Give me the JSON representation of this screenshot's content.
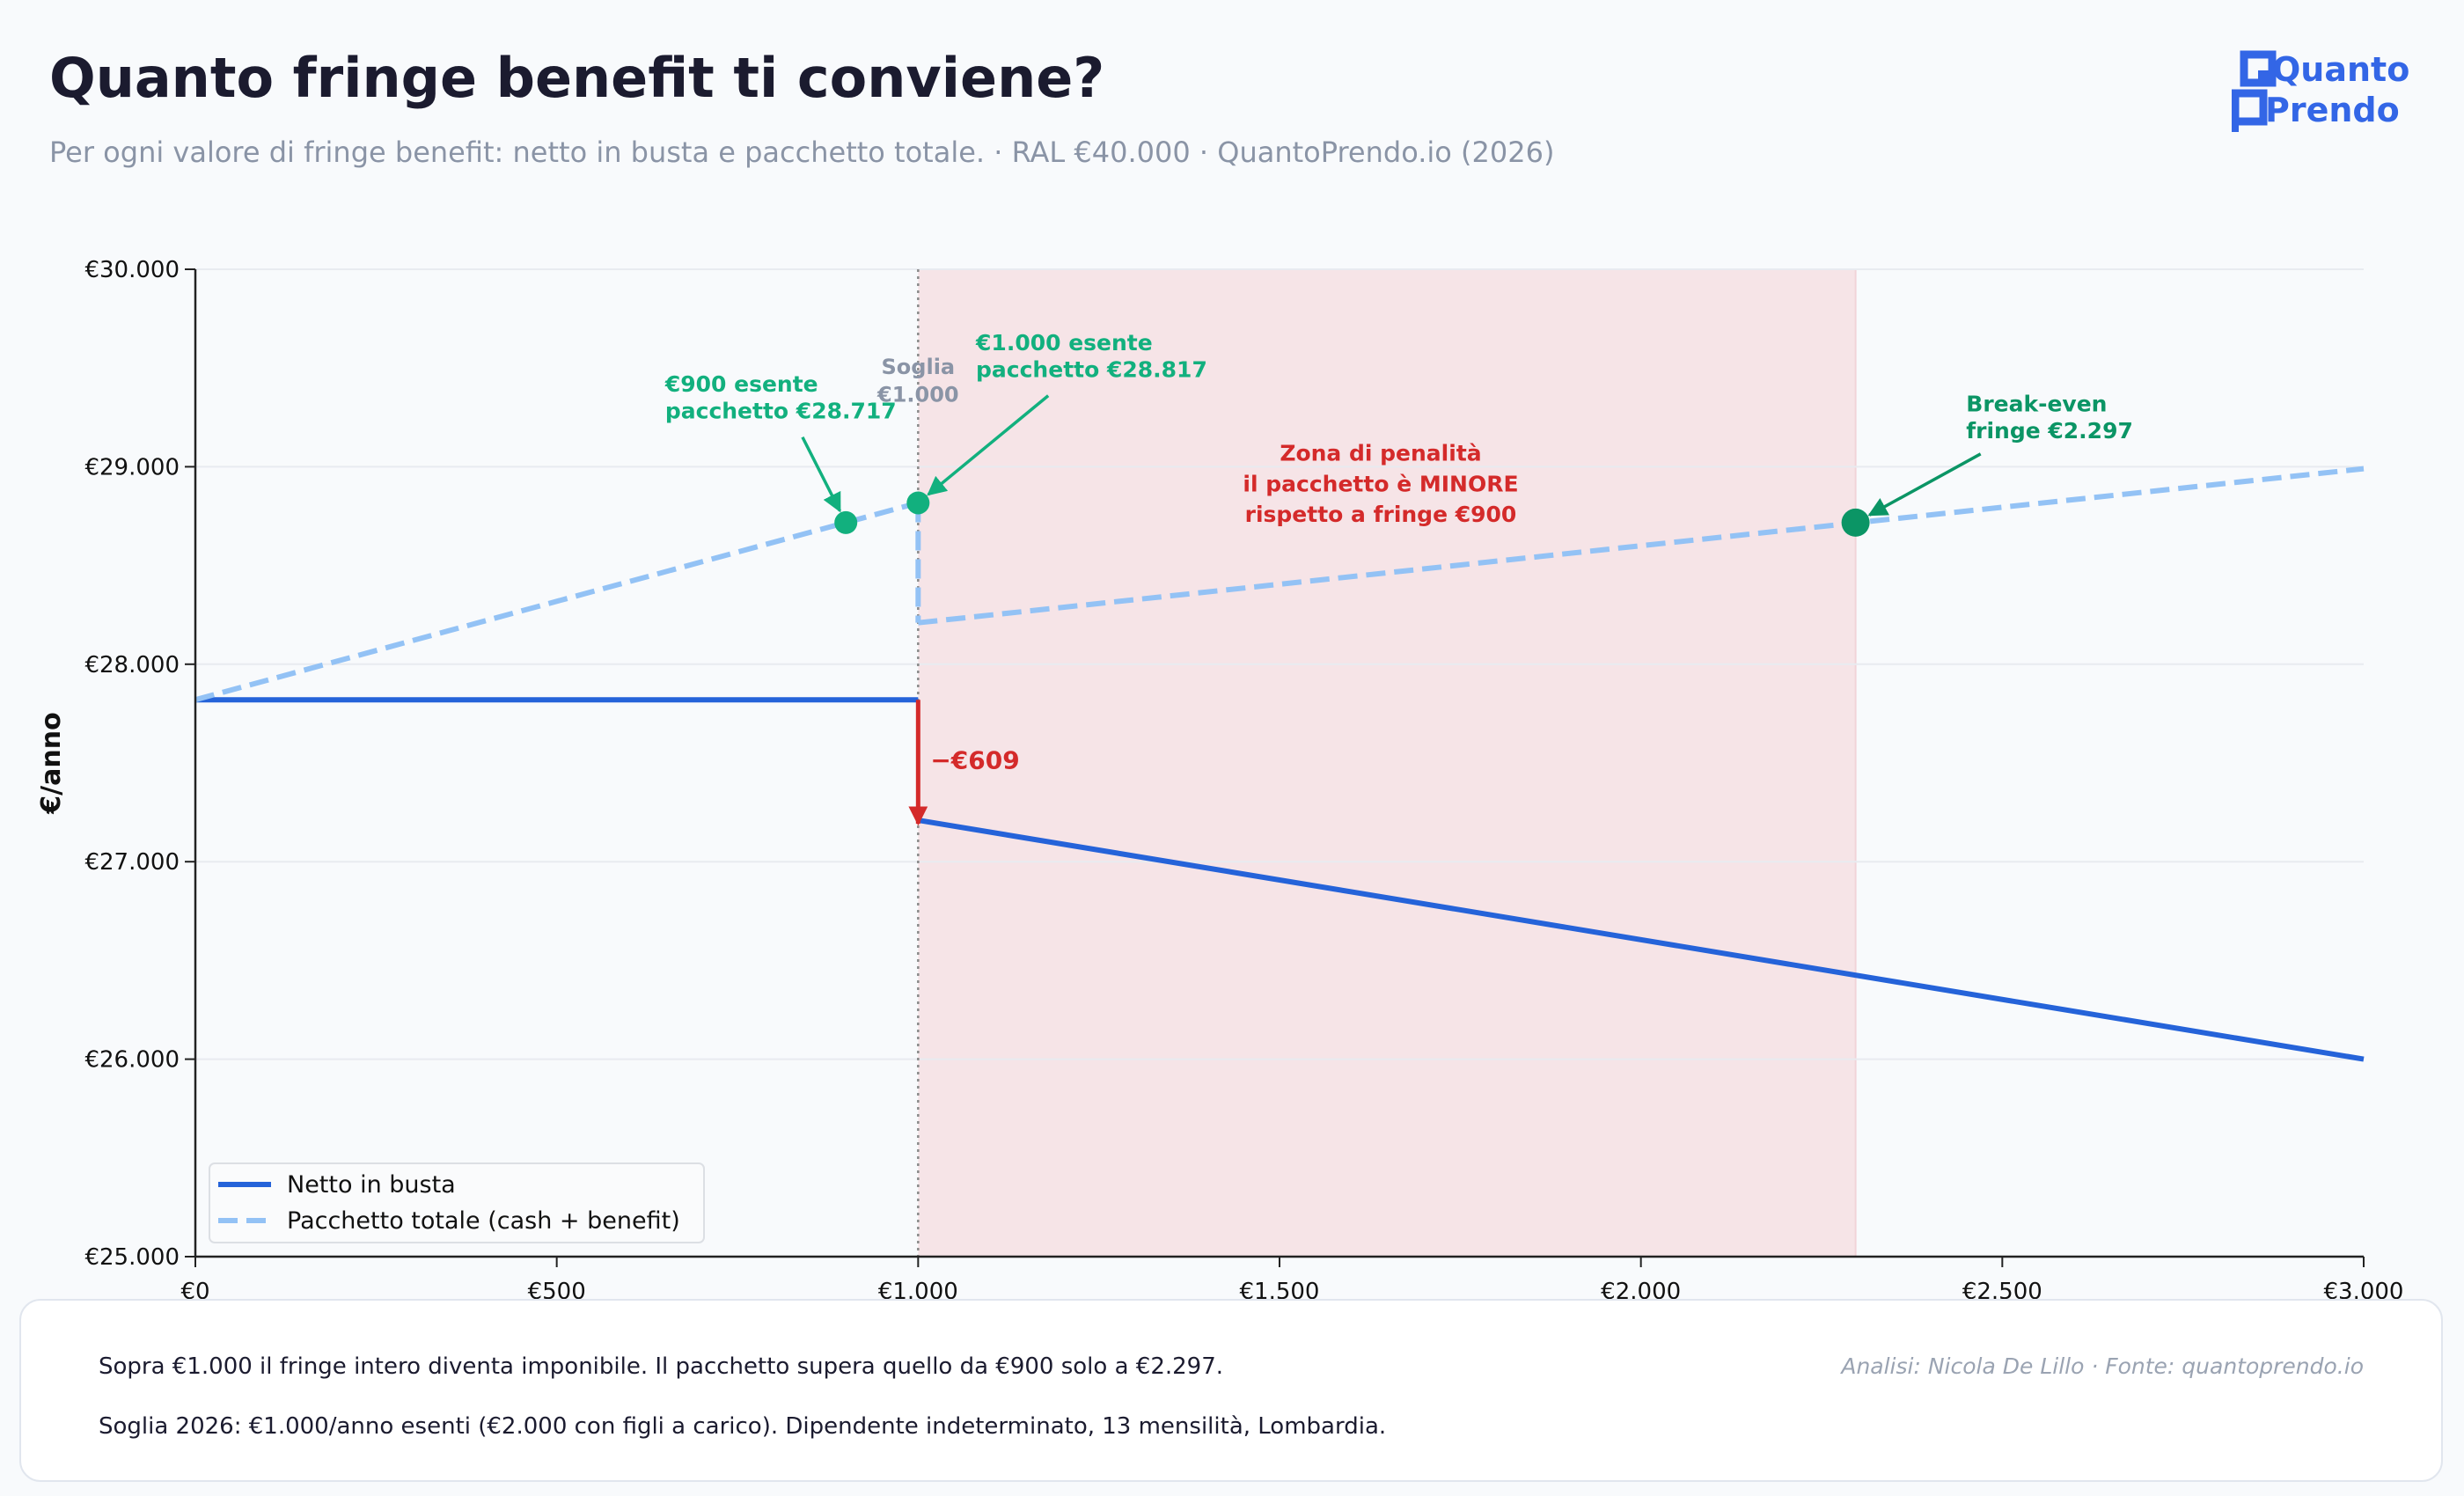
{
  "header": {
    "title": "Quanto fringe benefit ti conviene?",
    "subtitle": "Per ogni valore di fringe benefit: netto in busta e pacchetto totale.  ·  RAL €40.000  ·  QuantoPrendo.io (2026)"
  },
  "logo": {
    "line1": "Quanto",
    "line2": "Prendo",
    "color": "#3366e6"
  },
  "chart_data": {
    "type": "line",
    "title": "",
    "xlabel": "",
    "ylabel": "€/anno",
    "xlim": [
      0,
      3000
    ],
    "ylim": [
      25000,
      30000
    ],
    "x_ticks": [
      0,
      500,
      1000,
      1500,
      2000,
      2500,
      3000
    ],
    "x_tick_labels": [
      "€0",
      "€500",
      "€1.000",
      "€1.500",
      "€2.000",
      "€2.500",
      "€3.000"
    ],
    "y_ticks": [
      25000,
      26000,
      27000,
      28000,
      29000,
      30000
    ],
    "y_tick_labels": [
      "€25.000",
      "€26.000",
      "€27.000",
      "€28.000",
      "€29.000",
      "€30.000"
    ],
    "grid": "horizontal",
    "legend_position": "bottom-left",
    "series": [
      {
        "name": "Netto in busta",
        "color": "#2563d9",
        "style": "solid",
        "segments": [
          [
            [
              0,
              27820
            ],
            [
              1000,
              27820
            ]
          ],
          [
            [
              1000,
              27210
            ],
            [
              3000,
              26000
            ]
          ]
        ]
      },
      {
        "name": "Pacchetto totale (cash + benefit)",
        "color": "#93c2f5",
        "style": "dashed",
        "segments": [
          [
            [
              0,
              27820
            ],
            [
              1000,
              28817
            ]
          ],
          [
            [
              1000,
              28817
            ],
            [
              1000,
              28210
            ]
          ],
          [
            [
              1000,
              28210
            ],
            [
              3000,
              28990
            ]
          ]
        ]
      }
    ],
    "threshold": {
      "x": 1000,
      "label_line1": "Soglia",
      "label_line2": "€1.000"
    },
    "penalty_zone": {
      "x_from": 1000,
      "x_to": 2297,
      "color": "#f6e4e7",
      "label_line1": "Zona di penalità",
      "label_line2": "il pacchetto è MINORE",
      "label_line3": "rispetto a fringe €900"
    },
    "drop": {
      "x": 1000,
      "y_from": 27820,
      "y_to": 27210,
      "label": "−€609",
      "color": "#d42a2a"
    },
    "points": [
      {
        "x": 900,
        "y": 28717,
        "label_line1": "€900 esente",
        "label_line2": "pacchetto €28.717",
        "color": "#12b07e"
      },
      {
        "x": 1000,
        "y": 28817,
        "label_line1": "€1.000 esente",
        "label_line2": "pacchetto €28.817",
        "color": "#12b07e"
      },
      {
        "x": 2297,
        "y": 28717,
        "label_line1": "Break-even",
        "label_line2": "fringe €2.297",
        "color": "#0b9565"
      }
    ]
  },
  "footer": {
    "line1": "Sopra €1.000 il fringe intero diventa imponibile. Il pacchetto supera quello da €900 solo a €2.297.",
    "line2": "Soglia 2026: €1.000/anno esenti (€2.000 con figli a carico).  Dipendente indeterminato, 13 mensilità, Lombardia.",
    "credit": "Analisi: Nicola De Lillo  ·  Fonte: quantoprendo.io"
  }
}
